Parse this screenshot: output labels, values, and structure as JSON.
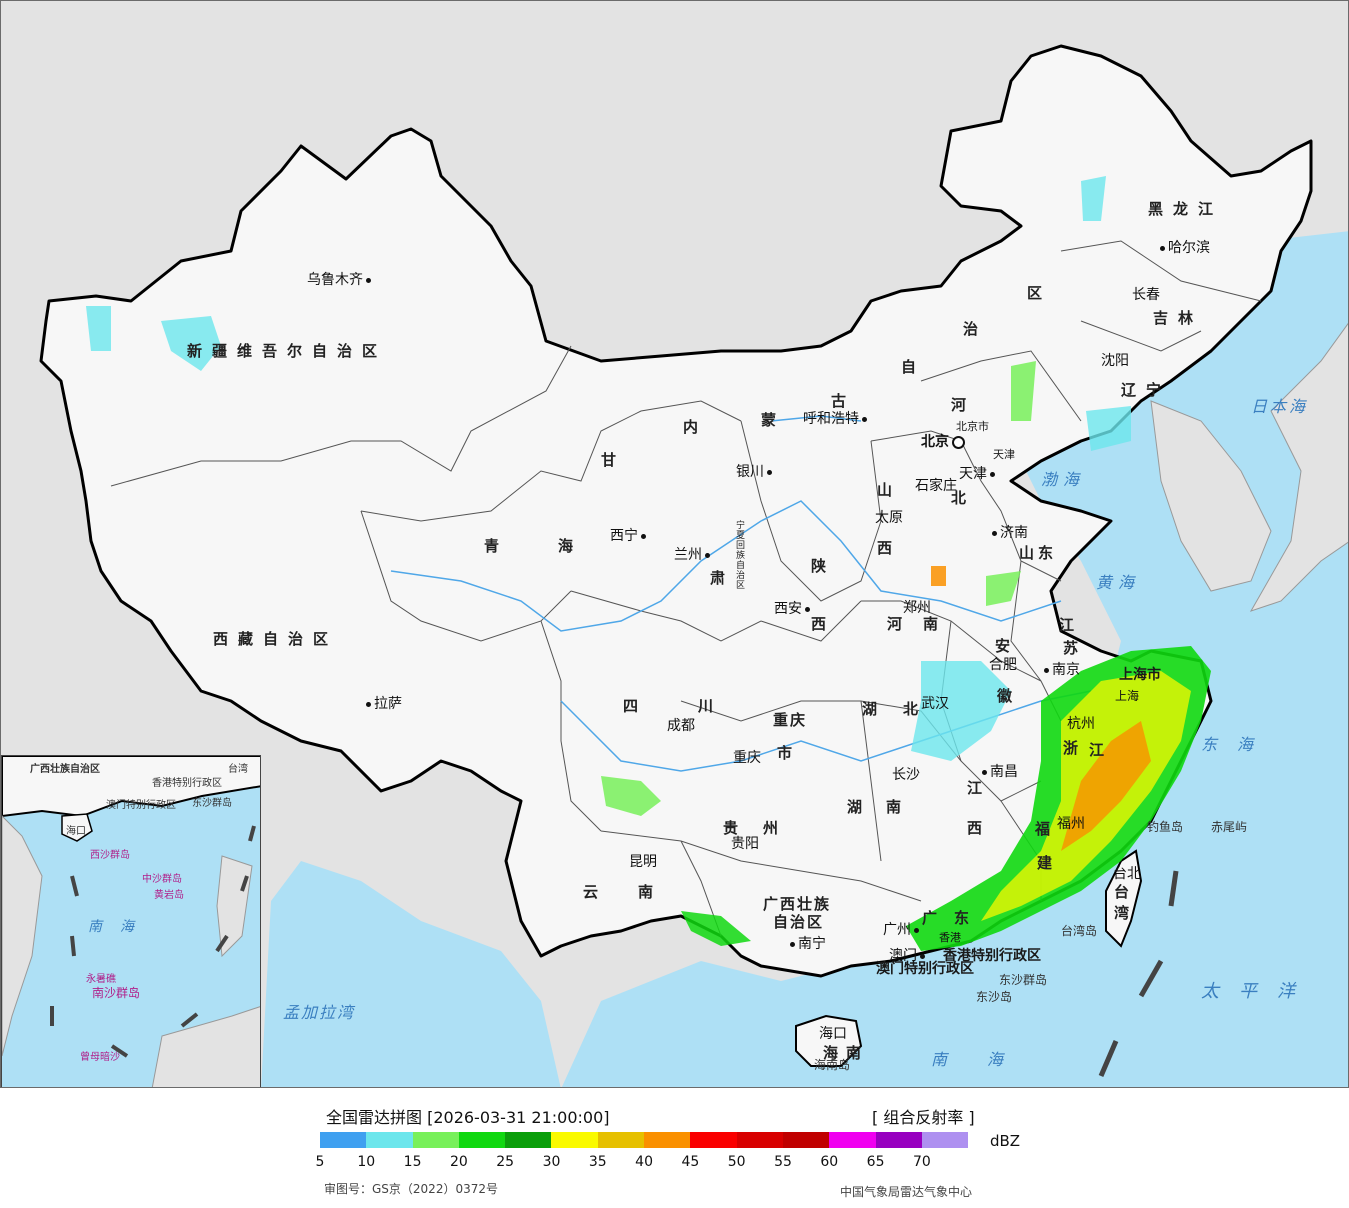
{
  "header": {
    "title": "全国雷达拼图 [2026-03-31 21:00:00]",
    "product": "[ 组合反射率 ]",
    "unit": "dBZ"
  },
  "legend": {
    "colors": [
      "#3fa0f0",
      "#6ce6ec",
      "#78f05a",
      "#10d810",
      "#0a9e0a",
      "#fafa00",
      "#e6c000",
      "#fa9000",
      "#fa0000",
      "#d80000",
      "#c00000",
      "#f000f0",
      "#9800c0",
      "#ae90f0"
    ],
    "ticks": [
      "5",
      "10",
      "15",
      "20",
      "25",
      "30",
      "35",
      "40",
      "45",
      "50",
      "55",
      "60",
      "65",
      "70"
    ]
  },
  "footer": {
    "approval": "审图号：GS京（2022）0372号",
    "source": "中国气象局雷达气象中心"
  },
  "provinces": {
    "xinjiang": "新疆维吾尔自治区",
    "tibet": "西藏自治区",
    "qinghai_1": "青",
    "qinghai_2": "海",
    "gansu_1": "甘",
    "gansu_2": "肃",
    "inner_mongolia_1": "内",
    "inner_mongolia_2": "蒙",
    "inner_mongolia_3": "古",
    "inner_mongolia_4": "自",
    "inner_mongolia_5": "治",
    "inner_mongolia_6": "区",
    "heilongjiang": "黑龙江",
    "jilin": "吉林",
    "liaoning": "辽宁",
    "hebei_1": "河",
    "hebei_2": "北",
    "shanxi_1": "山",
    "shanxi_2": "西",
    "shaanxi_1": "陕",
    "shaanxi_2": "西",
    "ningxia": "宁夏回族自治区",
    "shandong": "山东",
    "henan_1": "河",
    "henan_2": "南",
    "jiangsu_1": "江",
    "jiangsu_2": "苏",
    "anhui_1": "安",
    "anhui_2": "徽",
    "hubei_1": "湖",
    "hubei_2": "北",
    "sichuan_1": "四",
    "sichuan_2": "川",
    "chongqing_1": "重庆",
    "chongqing_2": "市",
    "guizhou_1": "贵",
    "guizhou_2": "州",
    "yunnan_1": "云",
    "yunnan_2": "南",
    "hunan_1": "湖",
    "hunan_2": "南",
    "jiangxi_1": "江",
    "jiangxi_2": "西",
    "zhejiang_1": "浙",
    "zhejiang_2": "江",
    "fujian_1": "福",
    "fujian_2": "建",
    "guangxi_1": "广西壮族",
    "guangxi_2": "自治区",
    "guangdong_1": "广",
    "guangdong_2": "东",
    "taiwan_1": "台",
    "taiwan_2": "湾",
    "hainan_1": "海",
    "hainan_2": "南",
    "shanghai": "上海市",
    "tianjin": "天津",
    "beijing_municipality": "北京市",
    "hongkong": "香港特别行政区",
    "macau": "澳门特别行政区"
  },
  "cities": {
    "urumqi": "乌鲁木齐",
    "lhasa": "拉萨",
    "xining": "西宁",
    "lanzhou": "兰州",
    "yinchuan": "银川",
    "hohhot": "呼和浩特",
    "beijing": "北京",
    "tianjin": "天津",
    "shijiazhuang": "石家庄",
    "taiyuan": "太原",
    "jinan": "济南",
    "zhengzhou": "郑州",
    "xian": "西安",
    "chengdu": "成都",
    "chongqing": "重庆",
    "wuhan": "武汉",
    "hefei": "合肥",
    "nanjing": "南京",
    "shanghai": "上海",
    "hangzhou": "杭州",
    "changsha": "长沙",
    "nanchang": "南昌",
    "fuzhou": "福州",
    "guiyang": "贵阳",
    "kunming": "昆明",
    "nanning": "南宁",
    "guangzhou": "广州",
    "macau": "澳门",
    "hongkong": "香港",
    "haikou": "海口",
    "taipei": "台北",
    "shenyang": "沈阳",
    "changchun": "长春",
    "harbin": "哈尔滨"
  },
  "seas": {
    "bohai": "渤海",
    "yellow_sea": "黄海",
    "east_sea": "东海",
    "south_sea": "南海",
    "pacific": "太平洋",
    "japan_sea": "日本海",
    "bengal": "孟加拉湾"
  },
  "islands": {
    "diaoyu": "钓鱼岛",
    "chiwei": "赤尾屿",
    "taiwan_island": "台湾岛",
    "dongsha_islands": "东沙群岛",
    "dongsha_island": "东沙岛",
    "hainan_island": "海南岛"
  },
  "inset": {
    "south_sea": "南海",
    "zhongsha": "中沙群岛",
    "nansha": "南沙群岛",
    "xisha": "西沙群岛",
    "huangyan": "黄岩岛",
    "guangxi": "广西壮族自治区",
    "taiwan": "台湾",
    "haikou": "海口",
    "dongsha": "东沙群岛",
    "hongkong": "香港特别行政区",
    "macau": "澳门特别行政区",
    "yongshu": "永暑礁",
    "zengmu": "曾母暗沙"
  }
}
